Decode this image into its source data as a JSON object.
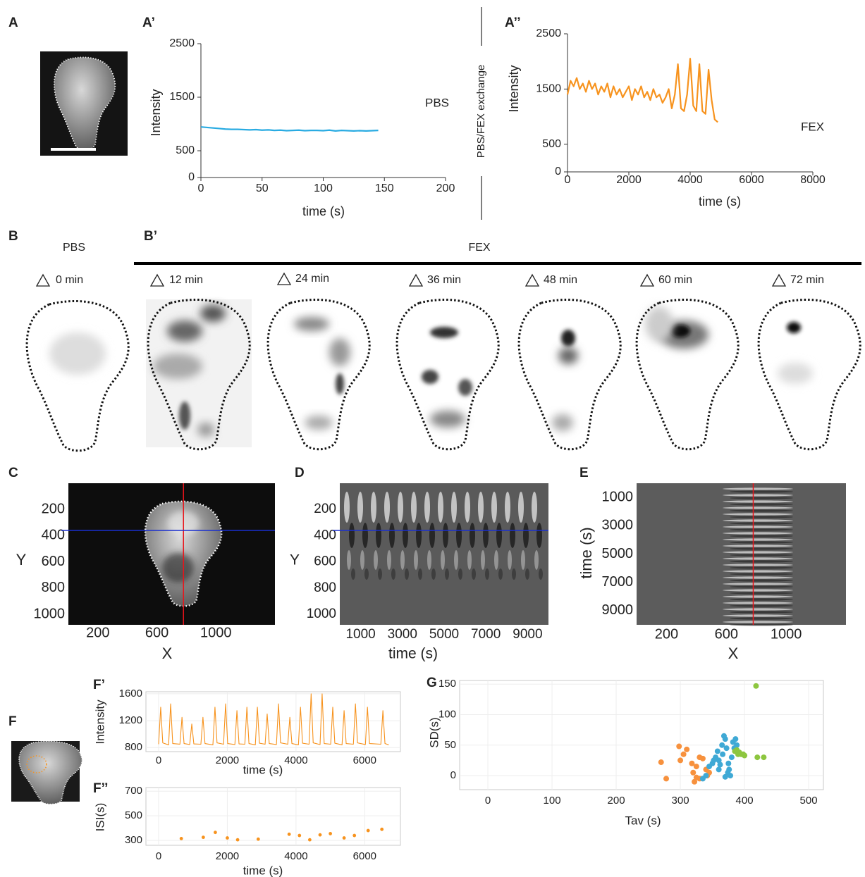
{
  "panel_labels": [
    "A",
    "A’",
    "A’’",
    "B",
    "B’",
    "C",
    "D",
    "E",
    "F",
    "F’",
    "F’’",
    "G"
  ],
  "exchange_label": "PBS/FEX exchange",
  "b_panel": {
    "pbs_label": "PBS",
    "fex_label": "FEX",
    "timepoints": [
      "0 min",
      "12 min",
      "24 min",
      "36 min",
      "48 min",
      "60 min",
      "72 min"
    ]
  },
  "chart_data": [
    {
      "type": "line",
      "xlabel": "time (s)",
      "ylabel": "Intensity",
      "spines": true,
      "xlim": [
        0,
        200
      ],
      "xticks": [
        0,
        50,
        100,
        150,
        200
      ],
      "ylim": [
        0,
        2500
      ],
      "yticks": [
        0,
        500,
        1500,
        2500
      ],
      "series": [
        {
          "name": "PBS",
          "color": "#29abe2",
          "x": [
            0,
            5,
            10,
            15,
            20,
            25,
            30,
            35,
            40,
            45,
            50,
            55,
            60,
            65,
            70,
            75,
            80,
            85,
            90,
            95,
            100,
            105,
            110,
            115,
            120,
            125,
            130,
            135,
            140,
            145
          ],
          "values": [
            945,
            935,
            925,
            915,
            905,
            900,
            900,
            895,
            890,
            895,
            885,
            890,
            880,
            885,
            875,
            880,
            885,
            875,
            880,
            880,
            875,
            885,
            870,
            880,
            875,
            870,
            875,
            870,
            875,
            880
          ]
        }
      ]
    },
    {
      "type": "line",
      "xlabel": "time (s)",
      "ylabel": "Intensity",
      "spines": true,
      "xlim": [
        0,
        8000
      ],
      "xticks": [
        0,
        2000,
        4000,
        6000,
        8000
      ],
      "ylim": [
        0,
        2500
      ],
      "yticks": [
        0,
        500,
        1500,
        2500
      ],
      "series": [
        {
          "name": "FEX",
          "color": "#f7931e",
          "x": [
            0,
            100,
            200,
            300,
            400,
            500,
            600,
            700,
            800,
            900,
            1000,
            1100,
            1200,
            1300,
            1400,
            1500,
            1600,
            1700,
            1800,
            1900,
            2000,
            2100,
            2200,
            2300,
            2400,
            2500,
            2600,
            2700,
            2800,
            2900,
            3000,
            3100,
            3200,
            3300,
            3400,
            3500,
            3600,
            3700,
            3800,
            3900,
            4000,
            4100,
            4200,
            4300,
            4400,
            4500,
            4600,
            4700,
            4800,
            4900
          ],
          "values": [
            1400,
            1650,
            1550,
            1700,
            1500,
            1600,
            1450,
            1650,
            1500,
            1600,
            1400,
            1550,
            1450,
            1600,
            1350,
            1550,
            1400,
            1500,
            1350,
            1450,
            1550,
            1300,
            1500,
            1400,
            1550,
            1350,
            1450,
            1300,
            1500,
            1350,
            1400,
            1250,
            1350,
            1500,
            1150,
            1400,
            1950,
            1150,
            1100,
            1400,
            2050,
            1200,
            1100,
            1950,
            1100,
            1050,
            1850,
            1300,
            950,
            900
          ]
        }
      ]
    },
    {
      "type": "image",
      "xlabel": "X",
      "ylabel": "Y",
      "y_reversed": true,
      "xlim": [
        0,
        1400
      ],
      "xticks": [
        200,
        600,
        1000
      ],
      "ylim": [
        0,
        1080
      ],
      "yticks": [
        200,
        400,
        600,
        800,
        1000
      ],
      "vline": 780,
      "hline": 360
    },
    {
      "type": "image",
      "xlabel": "time (s)",
      "ylabel": "Y",
      "y_reversed": true,
      "xlim": [
        0,
        10000
      ],
      "xticks": [
        1000,
        3000,
        5000,
        7000,
        9000
      ],
      "ylim": [
        0,
        1080
      ],
      "yticks": [
        200,
        400,
        600,
        800,
        1000
      ],
      "hline": 360
    },
    {
      "type": "image",
      "xlabel": "X",
      "ylabel": "time (s)",
      "y_reversed": true,
      "xlim": [
        0,
        1400
      ],
      "xticks": [
        200,
        600,
        1000
      ],
      "ylim": [
        0,
        10000
      ],
      "yticks": [
        1000,
        3000,
        5000,
        7000,
        9000
      ],
      "vline": 780
    },
    {
      "type": "line",
      "xlabel": "time (s)",
      "ylabel": "Intensity",
      "grid": true,
      "xlim": [
        -370,
        7040
      ],
      "xticks": [
        0,
        2000,
        4000,
        6000
      ],
      "ylim": [
        740,
        1630
      ],
      "yticks": [
        800,
        1200,
        1600
      ],
      "series": [
        {
          "color": "#f7931e",
          "x": [
            0,
            60,
            120,
            290,
            350,
            410,
            620,
            680,
            740,
            905,
            965,
            1025,
            1230,
            1290,
            1350,
            1580,
            1640,
            1700,
            1890,
            1950,
            2010,
            2220,
            2280,
            2340,
            2510,
            2570,
            2630,
            2815,
            2875,
            2935,
            3100,
            3160,
            3220,
            3430,
            3490,
            3550,
            3760,
            3820,
            3880,
            4070,
            4130,
            4190,
            4380,
            4440,
            4500,
            4700,
            4760,
            4820,
            5010,
            5070,
            5130,
            5340,
            5400,
            5460,
            5670,
            5730,
            5790,
            6020,
            6080,
            6140,
            6470,
            6530,
            6590,
            6700
          ],
          "values": [
            850,
            1400,
            870,
            840,
            1450,
            860,
            850,
            1250,
            860,
            845,
            1150,
            855,
            850,
            1250,
            860,
            840,
            1400,
            870,
            850,
            1450,
            860,
            845,
            1350,
            855,
            850,
            1400,
            860,
            840,
            1400,
            865,
            850,
            1300,
            860,
            845,
            1450,
            870,
            850,
            1250,
            860,
            840,
            1400,
            865,
            850,
            1600,
            870,
            845,
            1600,
            860,
            850,
            1400,
            865,
            840,
            1350,
            860,
            850,
            1450,
            870,
            845,
            1400,
            860,
            850,
            1350,
            860,
            840
          ]
        }
      ]
    },
    {
      "type": "scatter",
      "xlabel": "time (s)",
      "ylabel": "ISI(s)",
      "grid": true,
      "xlim": [
        -370,
        7040
      ],
      "xticks": [
        0,
        2000,
        4000,
        6000
      ],
      "ylim": [
        260,
        730
      ],
      "yticks": [
        300,
        500,
        700
      ],
      "series": [
        {
          "color": "#f7931e",
          "x": [
            660,
            1300,
            1650,
            2000,
            2300,
            2900,
            3800,
            4100,
            4400,
            4700,
            5000,
            5400,
            5700,
            6100,
            6500
          ],
          "values": [
            315,
            325,
            365,
            320,
            305,
            310,
            350,
            340,
            305,
            345,
            355,
            320,
            340,
            380,
            390
          ]
        }
      ]
    },
    {
      "type": "scatter",
      "xlabel": "Tav (s)",
      "ylabel": "SD(s)",
      "grid": true,
      "xlim": [
        -44,
        523
      ],
      "xticks": [
        0,
        100,
        200,
        300,
        400,
        500
      ],
      "ylim": [
        -23,
        156
      ],
      "yticks": [
        0,
        50,
        100,
        150
      ],
      "series": [
        {
          "color": "#f7913d",
          "x": [
            270,
            278,
            298,
            305,
            310,
            318,
            320,
            322,
            325,
            330,
            335,
            340,
            342,
            330,
            345,
            325,
            300
          ],
          "values": [
            22,
            -5,
            48,
            35,
            43,
            20,
            5,
            -10,
            15,
            -5,
            28,
            10,
            0,
            30,
            5,
            -3,
            25
          ]
        },
        {
          "color": "#3fa9d5",
          "x": [
            335,
            340,
            345,
            350,
            355,
            358,
            360,
            362,
            365,
            368,
            370,
            372,
            375,
            374,
            376,
            378,
            380,
            382,
            384,
            386,
            388,
            360,
            352,
            370,
            366
          ],
          "values": [
            -5,
            0,
            15,
            20,
            30,
            40,
            25,
            18,
            50,
            65,
            60,
            45,
            20,
            5,
            10,
            0,
            30,
            55,
            45,
            60,
            50,
            10,
            25,
            -2,
            35
          ]
        },
        {
          "color": "#8dc63f",
          "x": [
            418,
            420,
            430,
            385,
            390,
            395,
            400,
            392,
            388,
            398
          ],
          "values": [
            147,
            30,
            30,
            40,
            35,
            35,
            33,
            38,
            42,
            35
          ]
        }
      ]
    }
  ]
}
